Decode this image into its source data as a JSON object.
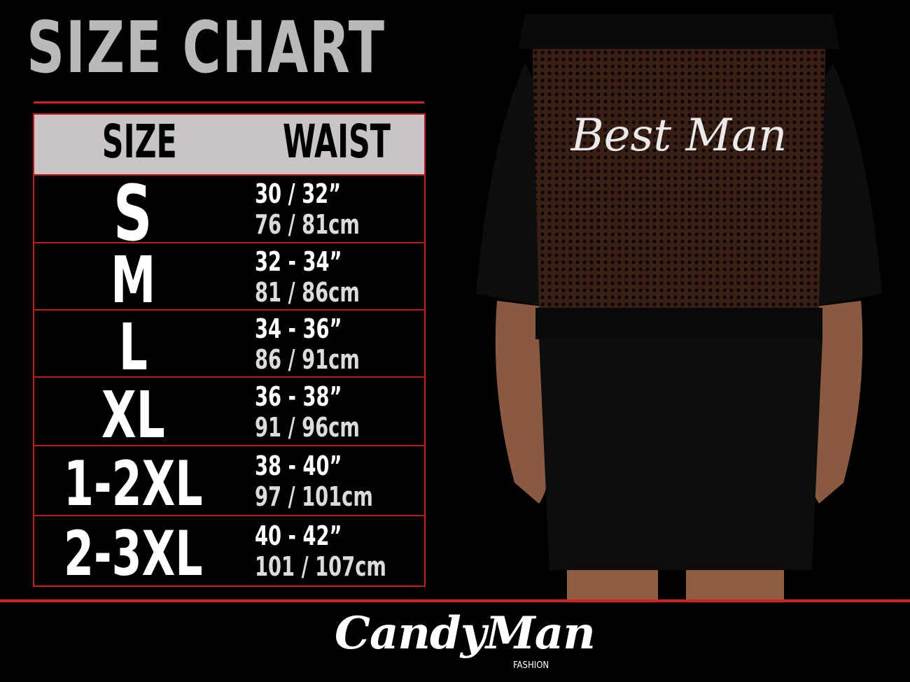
{
  "title": "SIZE CHART",
  "table": {
    "headers": [
      "SIZE",
      "WAIST"
    ],
    "rows": [
      {
        "size": "S",
        "inch": "30 / 32”",
        "cm": "76 / 81cm"
      },
      {
        "size": "M",
        "inch": "32 - 34”",
        "cm": "81 / 86cm"
      },
      {
        "size": "L",
        "inch": "34 - 36”",
        "cm": "86 / 91cm"
      },
      {
        "size": "XL",
        "inch": "36 - 38”",
        "cm": "91 / 96cm"
      },
      {
        "size": "1-2XL",
        "inch": "38 - 40”",
        "cm": "97 / 101cm"
      },
      {
        "size": "2-3XL",
        "inch": "40 - 42”",
        "cm": "101 / 107cm"
      }
    ]
  },
  "product": {
    "back_print": "Best Man"
  },
  "brand": {
    "name": "CandyMan",
    "sub": "FASHION"
  },
  "colors": {
    "accent": "#d42020",
    "header_bg": "#c9c5c6",
    "title": "#b9b9b9"
  }
}
